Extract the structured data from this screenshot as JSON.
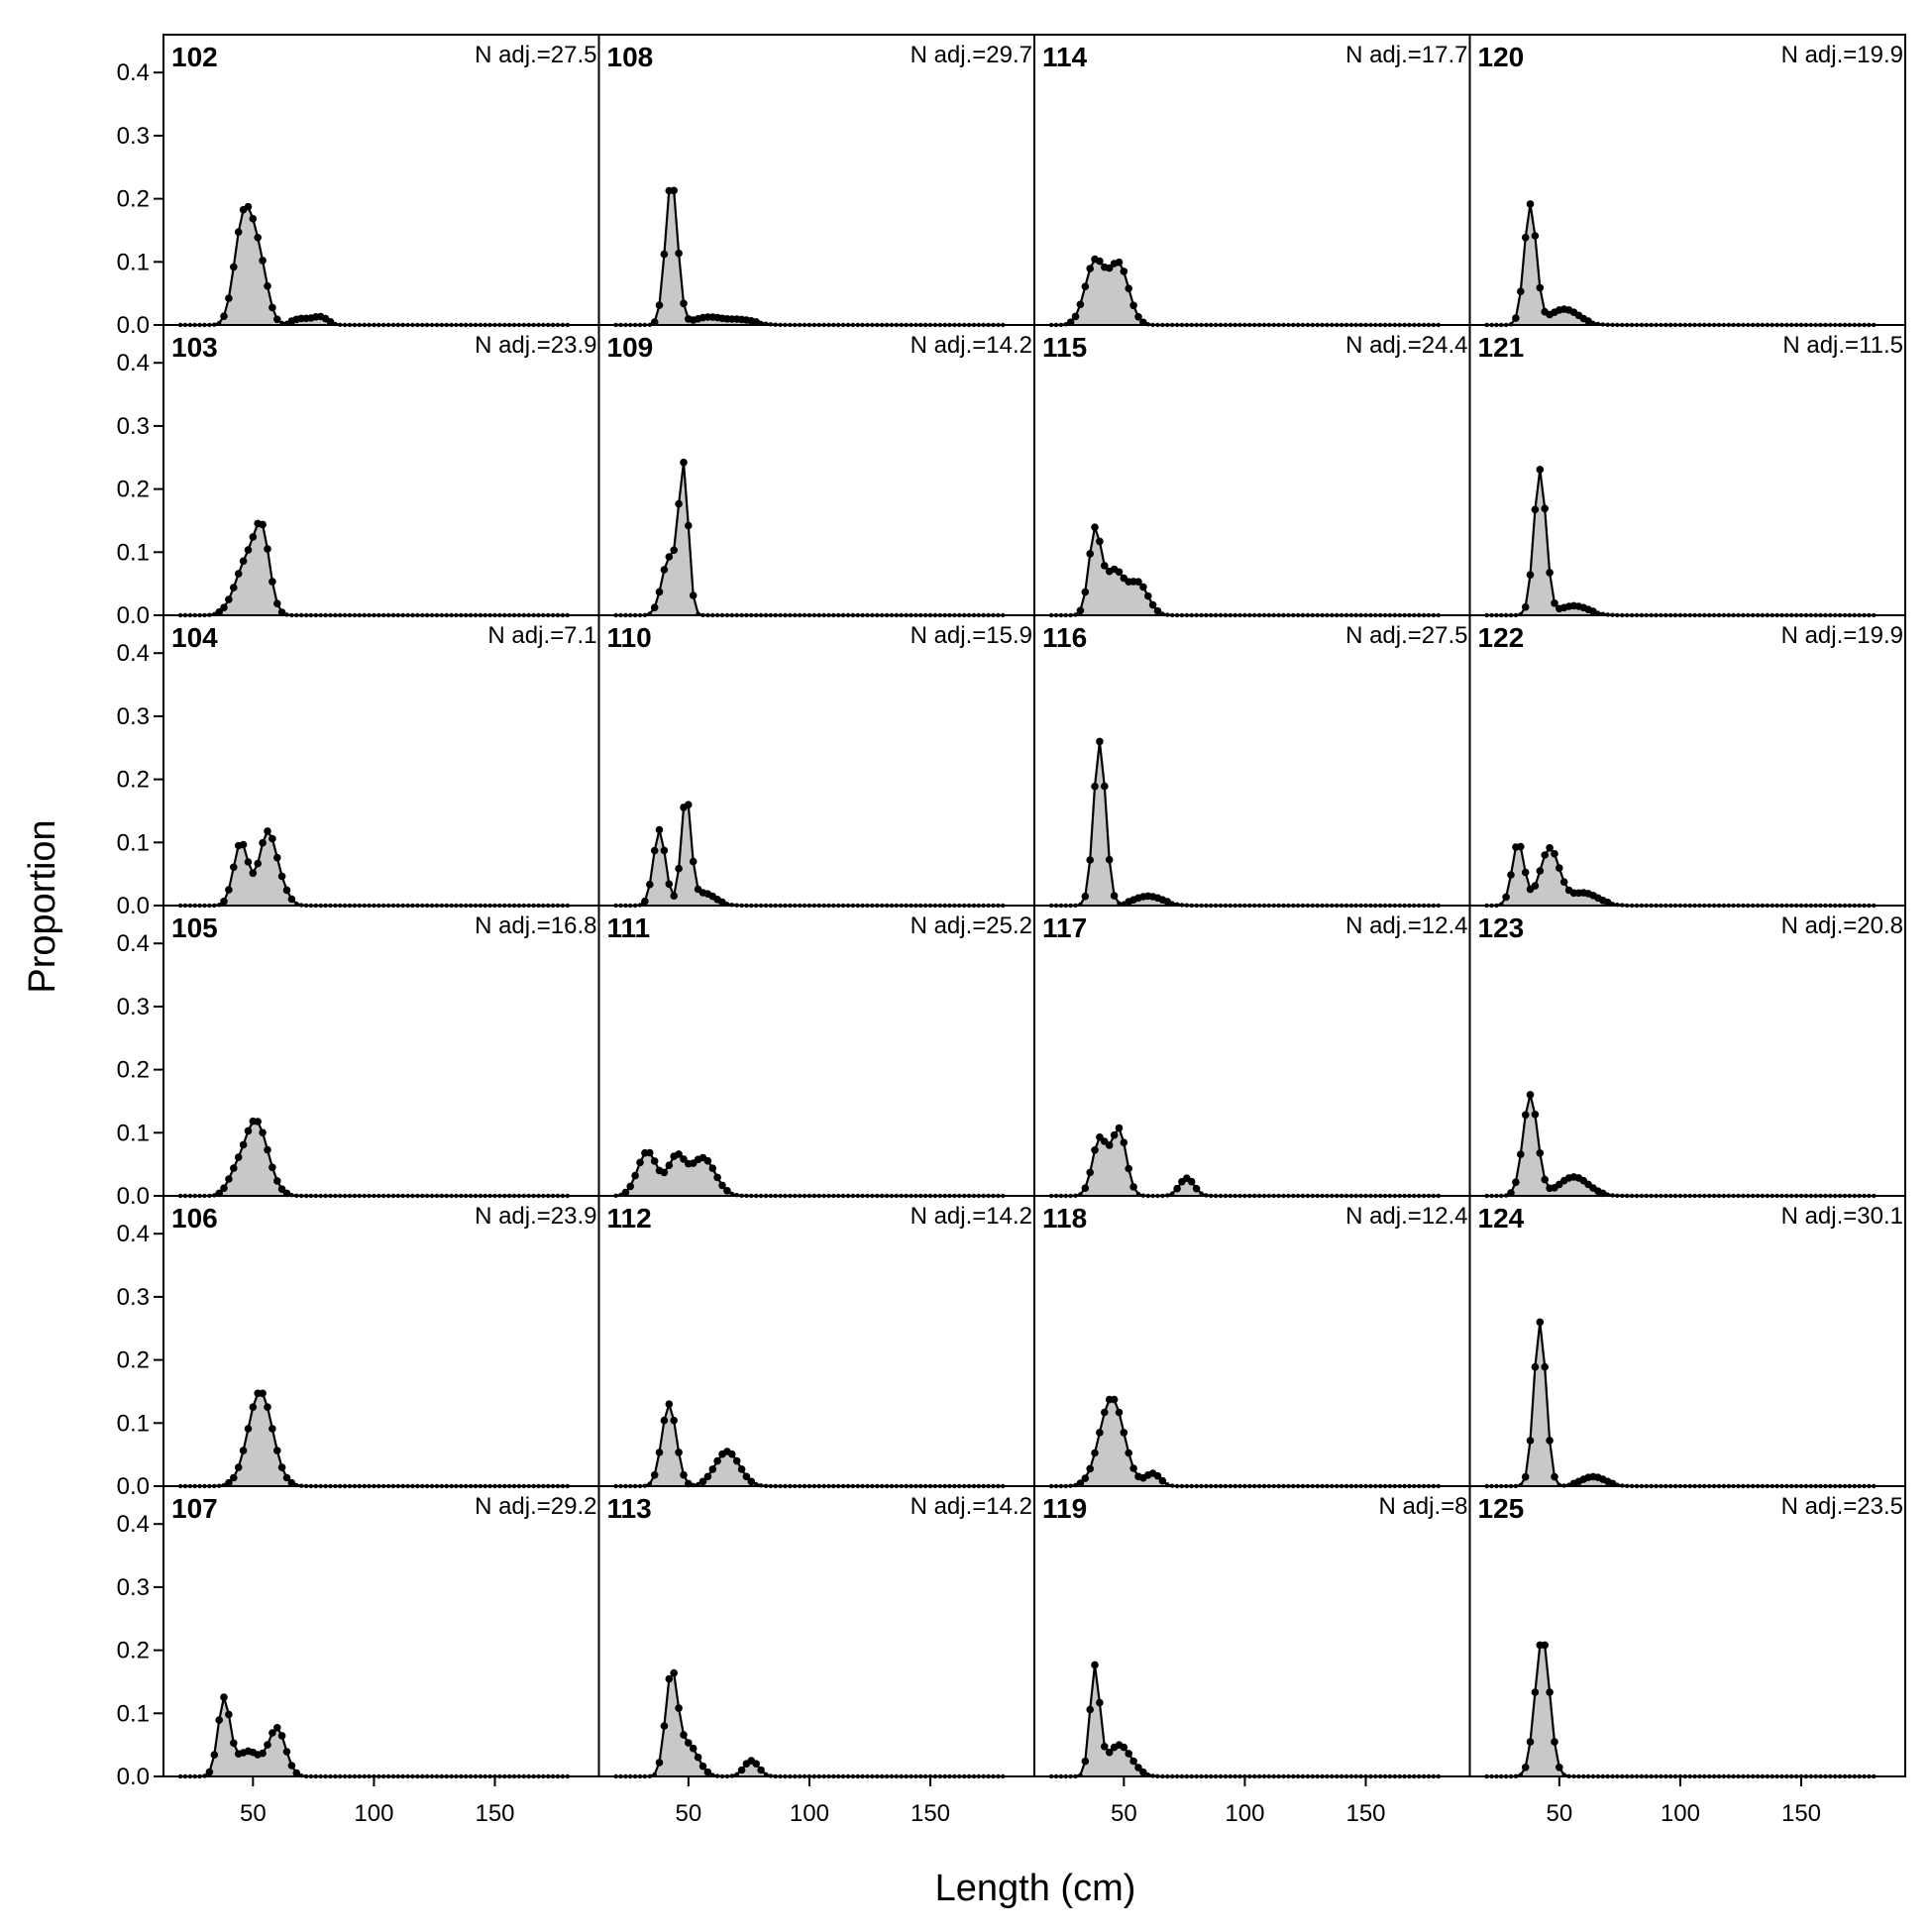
{
  "chart_data": {
    "type": "area",
    "xlabel": "Length (cm)",
    "ylabel": "Proportion",
    "xlim": [
      13,
      193
    ],
    "ylim": [
      0,
      0.46
    ],
    "x_ticks": [
      50,
      100,
      150
    ],
    "y_ticks": [
      0.0,
      0.1,
      0.2,
      0.3,
      0.4
    ],
    "y_tick_labels": [
      "0.0",
      "0.1",
      "0.2",
      "0.3",
      "0.4"
    ],
    "length_bins": {
      "start": 20,
      "end": 180,
      "step": 2
    },
    "panels": [
      {
        "id": "102",
        "n_adj": "N adj.=27.5",
        "peaks": [
          [
            48,
            0.16,
            4
          ],
          [
            44,
            0.05,
            3
          ],
          [
            54,
            0.05,
            3
          ],
          [
            70,
            0.01,
            4
          ],
          [
            78,
            0.012,
            3
          ]
        ]
      },
      {
        "id": "103",
        "n_adj": "N adj.=23.9",
        "peaks": [
          [
            48,
            0.09,
            5
          ],
          [
            54,
            0.1,
            3
          ]
        ]
      },
      {
        "id": "104",
        "n_adj": "N adj.=7.1",
        "peaks": [
          [
            45,
            0.1,
            3
          ],
          [
            56,
            0.115,
            3.5
          ],
          [
            62,
            0.02,
            3
          ]
        ]
      },
      {
        "id": "105",
        "n_adj": "N adj.=16.8",
        "peaks": [
          [
            51,
            0.12,
            5
          ],
          [
            42,
            0.02,
            3
          ]
        ]
      },
      {
        "id": "106",
        "n_adj": "N adj.=23.9",
        "peaks": [
          [
            53,
            0.15,
            5
          ]
        ]
      },
      {
        "id": "107",
        "n_adj": "N adj.=29.2",
        "peaks": [
          [
            38,
            0.12,
            2.5
          ],
          [
            48,
            0.04,
            5
          ],
          [
            60,
            0.075,
            3.5
          ]
        ]
      },
      {
        "id": "108",
        "n_adj": "N adj.=29.7",
        "peaks": [
          [
            43,
            0.23,
            2.5
          ],
          [
            58,
            0.012,
            6
          ],
          [
            72,
            0.008,
            6
          ]
        ]
      },
      {
        "id": "109",
        "n_adj": "N adj.=14.2",
        "peaks": [
          [
            48,
            0.23,
            2
          ],
          [
            42,
            0.09,
            3
          ]
        ]
      },
      {
        "id": "110",
        "n_adj": "N adj.=15.9",
        "peaks": [
          [
            38,
            0.12,
            2.5
          ],
          [
            49,
            0.17,
            2
          ],
          [
            56,
            0.02,
            5
          ]
        ]
      },
      {
        "id": "111",
        "n_adj": "N adj.=25.2",
        "peaks": [
          [
            33,
            0.07,
            4
          ],
          [
            45,
            0.06,
            3.5
          ],
          [
            56,
            0.06,
            5
          ]
        ]
      },
      {
        "id": "112",
        "n_adj": "N adj.=14.2",
        "peaks": [
          [
            42,
            0.13,
            3
          ],
          [
            66,
            0.055,
            5
          ]
        ]
      },
      {
        "id": "113",
        "n_adj": "N adj.=14.2",
        "peaks": [
          [
            43,
            0.16,
            2.5
          ],
          [
            50,
            0.05,
            4
          ],
          [
            76,
            0.025,
            3
          ]
        ]
      },
      {
        "id": "114",
        "n_adj": "N adj.=17.7",
        "peaks": [
          [
            38,
            0.1,
            4
          ],
          [
            48,
            0.095,
            4
          ]
        ]
      },
      {
        "id": "115",
        "n_adj": "N adj.=24.4",
        "peaks": [
          [
            38,
            0.13,
            2.5
          ],
          [
            46,
            0.07,
            4
          ],
          [
            56,
            0.05,
            4
          ]
        ]
      },
      {
        "id": "116",
        "n_adj": "N adj.=27.5",
        "peaks": [
          [
            40,
            0.26,
            2.5
          ],
          [
            60,
            0.015,
            6
          ]
        ]
      },
      {
        "id": "117",
        "n_adj": "N adj.=12.4",
        "peaks": [
          [
            40,
            0.09,
            3
          ],
          [
            48,
            0.105,
            3
          ],
          [
            76,
            0.028,
            3
          ]
        ]
      },
      {
        "id": "118",
        "n_adj": "N adj.=12.4",
        "peaks": [
          [
            45,
            0.14,
            5
          ],
          [
            62,
            0.02,
            3
          ]
        ]
      },
      {
        "id": "119",
        "n_adj": "N adj.=8",
        "peaks": [
          [
            38,
            0.17,
            2
          ],
          [
            48,
            0.05,
            5
          ]
        ]
      },
      {
        "id": "120",
        "n_adj": "N adj.=19.9",
        "peaks": [
          [
            38,
            0.19,
            2.5
          ],
          [
            52,
            0.025,
            6
          ]
        ]
      },
      {
        "id": "121",
        "n_adj": "N adj.=11.5",
        "peaks": [
          [
            42,
            0.23,
            2.5
          ],
          [
            56,
            0.015,
            6
          ]
        ]
      },
      {
        "id": "122",
        "n_adj": "N adj.=19.9",
        "peaks": [
          [
            33,
            0.1,
            2.5
          ],
          [
            46,
            0.09,
            4
          ],
          [
            60,
            0.02,
            6
          ]
        ]
      },
      {
        "id": "123",
        "n_adj": "N adj.=20.8",
        "peaks": [
          [
            38,
            0.16,
            3
          ],
          [
            56,
            0.03,
            6
          ]
        ]
      },
      {
        "id": "124",
        "n_adj": "N adj.=30.1",
        "peaks": [
          [
            42,
            0.26,
            2.5
          ],
          [
            64,
            0.015,
            5
          ]
        ]
      },
      {
        "id": "125",
        "n_adj": "N adj.=23.5",
        "peaks": [
          [
            43,
            0.22,
            3
          ]
        ]
      }
    ]
  }
}
